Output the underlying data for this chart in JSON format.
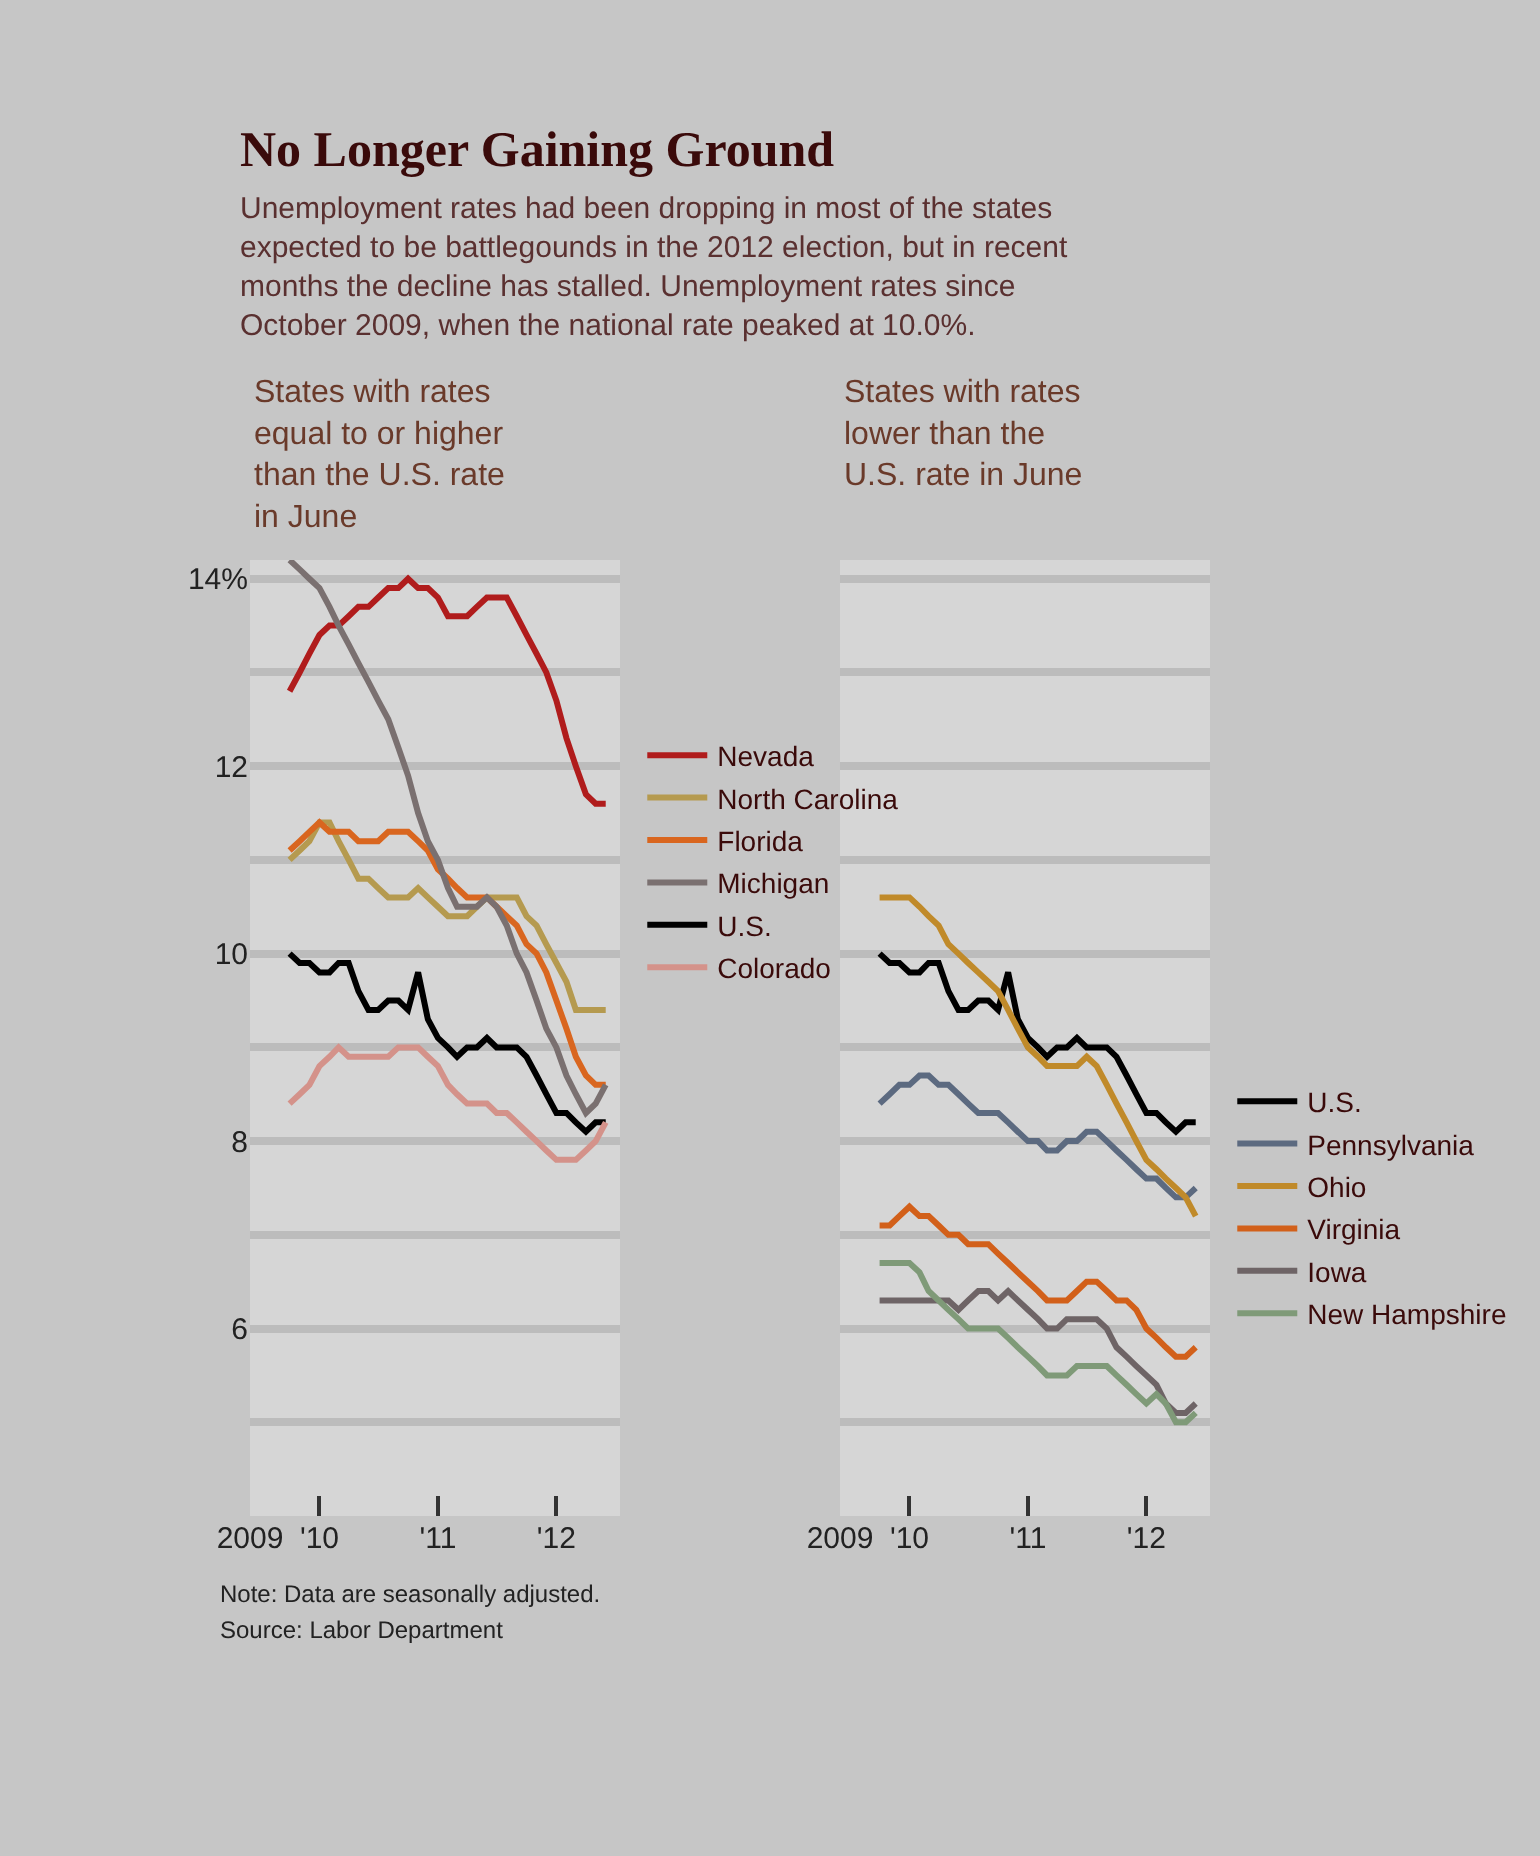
{
  "chart_data": [
    {
      "type": "other",
      "title": "No Longer Gaining Ground",
      "subtitle": "Unemployment rates had been dropping in most of the states expected to be battlegounds in the 2012 election, but in recent months the decline has stalled. Unemployment rates since October 2009, when the national rate peaked at 10.0%."
    },
    {
      "type": "line",
      "title": "States with rates equal to or higher than the U.S. rate in June",
      "x": [
        "2009-10",
        "2009-11",
        "2009-12",
        "2010-01",
        "2010-02",
        "2010-03",
        "2010-04",
        "2010-05",
        "2010-06",
        "2010-07",
        "2010-08",
        "2010-09",
        "2010-10",
        "2010-11",
        "2010-12",
        "2011-01",
        "2011-02",
        "2011-03",
        "2011-04",
        "2011-05",
        "2011-06",
        "2011-07",
        "2011-08",
        "2011-09",
        "2011-10",
        "2011-11",
        "2011-12",
        "2012-01",
        "2012-02",
        "2012-03",
        "2012-04",
        "2012-05",
        "2012-06"
      ],
      "xlim": [
        "2009-06",
        "2012-07-15"
      ],
      "xticks": [
        {
          "value": "2009-06",
          "label": "2009"
        },
        {
          "value": "2010-01",
          "label": "'10"
        },
        {
          "value": "2011-01",
          "label": "'11"
        },
        {
          "value": "2012-01",
          "label": "'12"
        }
      ],
      "ylim": [
        4,
        14.2
      ],
      "yticks": [
        {
          "value": 14,
          "label": "14%"
        },
        {
          "value": 13,
          "label": null
        },
        12,
        {
          "value": 11,
          "label": null
        },
        10,
        {
          "value": 9,
          "label": null
        },
        8,
        {
          "value": 7,
          "label": null
        },
        6,
        {
          "value": 5,
          "label": null
        }
      ],
      "grid": "y",
      "legend": "right",
      "marker": "none",
      "line_style": "solid",
      "series": [
        {
          "name": "Nevada",
          "color": "#b01c1c",
          "values": [
            12.8,
            13.0,
            13.2,
            13.4,
            13.5,
            13.5,
            13.6,
            13.7,
            13.7,
            13.8,
            13.9,
            13.9,
            14.0,
            13.9,
            13.9,
            13.8,
            13.6,
            13.6,
            13.6,
            13.7,
            13.8,
            13.8,
            13.8,
            13.6,
            13.4,
            13.2,
            13.0,
            12.7,
            12.3,
            12.0,
            11.7,
            11.6,
            11.6
          ]
        },
        {
          "name": "North Carolina",
          "color": "#b59a4f",
          "values": [
            11.0,
            11.1,
            11.2,
            11.4,
            11.4,
            11.2,
            11.0,
            10.8,
            10.8,
            10.7,
            10.6,
            10.6,
            10.6,
            10.7,
            10.6,
            10.5,
            10.4,
            10.4,
            10.4,
            10.5,
            10.6,
            10.6,
            10.6,
            10.6,
            10.4,
            10.3,
            10.1,
            9.9,
            9.7,
            9.4,
            9.4,
            9.4,
            9.4
          ]
        },
        {
          "name": "Florida",
          "color": "#d9661f",
          "values": [
            11.1,
            11.2,
            11.3,
            11.4,
            11.3,
            11.3,
            11.3,
            11.2,
            11.2,
            11.2,
            11.3,
            11.3,
            11.3,
            11.2,
            11.1,
            10.9,
            10.8,
            10.7,
            10.6,
            10.6,
            10.6,
            10.5,
            10.4,
            10.3,
            10.1,
            10.0,
            9.8,
            9.5,
            9.2,
            8.9,
            8.7,
            8.6,
            8.6
          ]
        },
        {
          "name": "Michigan",
          "color": "#7a7070",
          "values": [
            14.2,
            14.1,
            14.0,
            13.9,
            13.7,
            13.5,
            13.3,
            13.1,
            12.9,
            12.7,
            12.5,
            12.2,
            11.9,
            11.5,
            11.2,
            11.0,
            10.7,
            10.5,
            10.5,
            10.5,
            10.6,
            10.5,
            10.3,
            10.0,
            9.8,
            9.5,
            9.2,
            9.0,
            8.7,
            8.5,
            8.3,
            8.4,
            8.6
          ]
        },
        {
          "name": "U.S.",
          "color": "#000000",
          "values": [
            10.0,
            9.9,
            9.9,
            9.8,
            9.8,
            9.9,
            9.9,
            9.6,
            9.4,
            9.4,
            9.5,
            9.5,
            9.4,
            9.8,
            9.3,
            9.1,
            9.0,
            8.9,
            9.0,
            9.0,
            9.1,
            9.0,
            9.0,
            9.0,
            8.9,
            8.7,
            8.5,
            8.3,
            8.3,
            8.2,
            8.1,
            8.2,
            8.2
          ]
        },
        {
          "name": "Colorado",
          "color": "#d4928a",
          "values": [
            8.4,
            8.5,
            8.6,
            8.8,
            8.9,
            9.0,
            8.9,
            8.9,
            8.9,
            8.9,
            8.9,
            9.0,
            9.0,
            9.0,
            8.9,
            8.8,
            8.6,
            8.5,
            8.4,
            8.4,
            8.4,
            8.3,
            8.3,
            8.2,
            8.1,
            8.0,
            7.9,
            7.8,
            7.8,
            7.8,
            7.9,
            8.0,
            8.2
          ]
        }
      ],
      "annotations": [
        "Note: Data are seasonally adjusted.",
        "Source: Labor Department"
      ]
    },
    {
      "type": "line",
      "title": "States with rates lower than the U.S. rate in June",
      "x": [
        "2009-10",
        "2009-11",
        "2009-12",
        "2010-01",
        "2010-02",
        "2010-03",
        "2010-04",
        "2010-05",
        "2010-06",
        "2010-07",
        "2010-08",
        "2010-09",
        "2010-10",
        "2010-11",
        "2010-12",
        "2011-01",
        "2011-02",
        "2011-03",
        "2011-04",
        "2011-05",
        "2011-06",
        "2011-07",
        "2011-08",
        "2011-09",
        "2011-10",
        "2011-11",
        "2011-12",
        "2012-01",
        "2012-02",
        "2012-03",
        "2012-04",
        "2012-05",
        "2012-06"
      ],
      "xlim": [
        "2009-06",
        "2012-07-15"
      ],
      "xticks": [
        {
          "value": "2009-06",
          "label": "2009"
        },
        {
          "value": "2010-01",
          "label": "'10"
        },
        {
          "value": "2011-01",
          "label": "'11"
        },
        {
          "value": "2012-01",
          "label": "'12"
        }
      ],
      "ylim": [
        4,
        14.2
      ],
      "yticks": [
        14,
        13,
        12,
        11,
        10,
        9,
        8,
        7,
        6,
        5
      ],
      "tick_labels": "x",
      "grid": "y",
      "legend": "right",
      "marker": "none",
      "line_style": "solid",
      "series": [
        {
          "name": "U.S.",
          "color": "#000000",
          "values": [
            10.0,
            9.9,
            9.9,
            9.8,
            9.8,
            9.9,
            9.9,
            9.6,
            9.4,
            9.4,
            9.5,
            9.5,
            9.4,
            9.8,
            9.3,
            9.1,
            9.0,
            8.9,
            9.0,
            9.0,
            9.1,
            9.0,
            9.0,
            9.0,
            8.9,
            8.7,
            8.5,
            8.3,
            8.3,
            8.2,
            8.1,
            8.2,
            8.2
          ]
        },
        {
          "name": "Pennsylvania",
          "color": "#5c6a80",
          "values": [
            8.4,
            8.5,
            8.6,
            8.6,
            8.7,
            8.7,
            8.6,
            8.6,
            8.5,
            8.4,
            8.3,
            8.3,
            8.3,
            8.2,
            8.1,
            8.0,
            8.0,
            7.9,
            7.9,
            8.0,
            8.0,
            8.1,
            8.1,
            8.0,
            7.9,
            7.8,
            7.7,
            7.6,
            7.6,
            7.5,
            7.4,
            7.4,
            7.5
          ]
        },
        {
          "name": "Ohio",
          "color": "#c08a2a",
          "values": [
            10.6,
            10.6,
            10.6,
            10.6,
            10.5,
            10.4,
            10.3,
            10.1,
            10.0,
            9.9,
            9.8,
            9.7,
            9.6,
            9.4,
            9.2,
            9.0,
            8.9,
            8.8,
            8.8,
            8.8,
            8.8,
            8.9,
            8.8,
            8.6,
            8.4,
            8.2,
            8.0,
            7.8,
            7.7,
            7.6,
            7.5,
            7.4,
            7.2
          ]
        },
        {
          "name": "Virginia",
          "color": "#d2601a",
          "values": [
            7.1,
            7.1,
            7.2,
            7.3,
            7.2,
            7.2,
            7.1,
            7.0,
            7.0,
            6.9,
            6.9,
            6.9,
            6.8,
            6.7,
            6.6,
            6.5,
            6.4,
            6.3,
            6.3,
            6.3,
            6.4,
            6.5,
            6.5,
            6.4,
            6.3,
            6.3,
            6.2,
            6.0,
            5.9,
            5.8,
            5.7,
            5.7,
            5.8
          ]
        },
        {
          "name": "Iowa",
          "color": "#6e6466",
          "values": [
            6.3,
            6.3,
            6.3,
            6.3,
            6.3,
            6.3,
            6.3,
            6.3,
            6.2,
            6.3,
            6.4,
            6.4,
            6.3,
            6.4,
            6.3,
            6.2,
            6.1,
            6.0,
            6.0,
            6.1,
            6.1,
            6.1,
            6.1,
            6.0,
            5.8,
            5.7,
            5.6,
            5.5,
            5.4,
            5.2,
            5.1,
            5.1,
            5.2
          ]
        },
        {
          "name": "New Hampshire",
          "color": "#7f9a78",
          "values": [
            6.7,
            6.7,
            6.7,
            6.7,
            6.6,
            6.4,
            6.3,
            6.2,
            6.1,
            6.0,
            6.0,
            6.0,
            6.0,
            5.9,
            5.8,
            5.7,
            5.6,
            5.5,
            5.5,
            5.5,
            5.6,
            5.6,
            5.6,
            5.6,
            5.5,
            5.4,
            5.3,
            5.2,
            5.3,
            5.2,
            5.0,
            5.0,
            5.1
          ]
        }
      ]
    }
  ]
}
